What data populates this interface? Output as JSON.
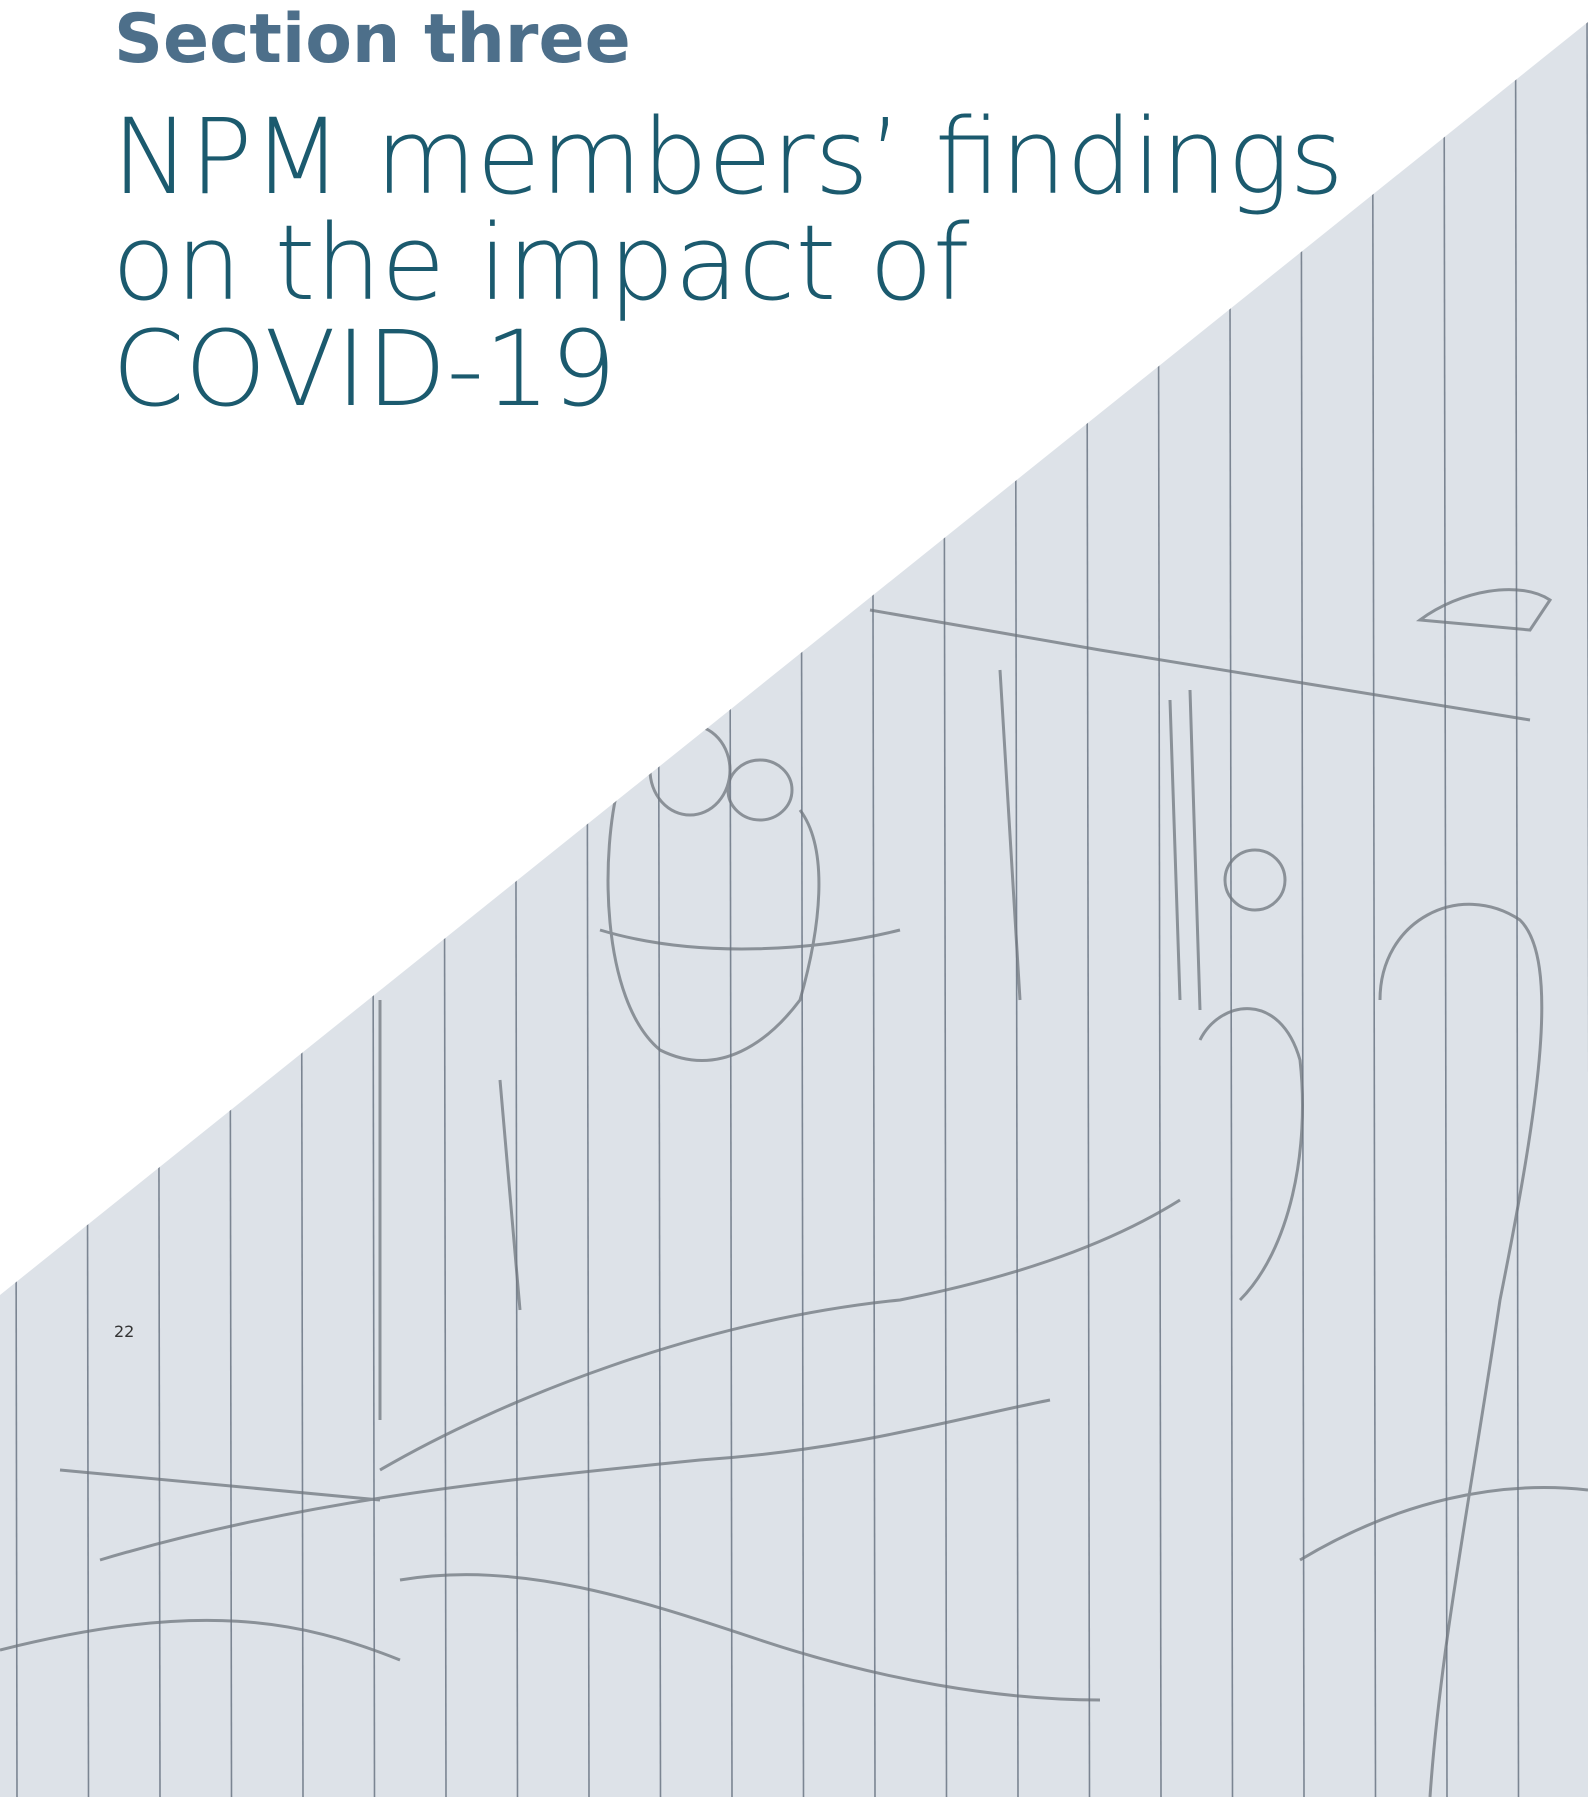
{
  "header": {
    "section": "Section three",
    "title_lines": [
      "NPM members’ findings",
      "on the impact of",
      "COVID-19"
    ]
  },
  "page_number": "22"
}
